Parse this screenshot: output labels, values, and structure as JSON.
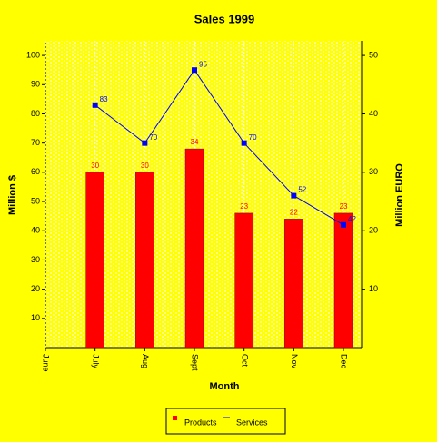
{
  "chart_data": {
    "type": "bar",
    "title": "Sales 1999",
    "x_label": "Month",
    "y_label": "Million $",
    "y2_label": "Million EURO",
    "categories": [
      "June",
      "July",
      "Aug",
      "Sept",
      "Oct",
      "Nov",
      "Dec"
    ],
    "series": [
      {
        "name": "Products",
        "type": "bar",
        "color": "#ff0000",
        "axis": "y2",
        "values": [
          null,
          30,
          30,
          34,
          23,
          22,
          23
        ]
      },
      {
        "name": "Services",
        "type": "line",
        "color": "#0000ff",
        "values": [
          null,
          83,
          70,
          95,
          70,
          52,
          42
        ]
      }
    ],
    "ylim": [
      0,
      105
    ],
    "yticks": [
      10,
      20,
      30,
      40,
      50,
      60,
      70,
      80,
      90,
      100
    ],
    "y2lim": [
      0,
      52.5
    ],
    "y2ticks": [
      10,
      20,
      30,
      40,
      50
    ],
    "grid": true,
    "legend": "bottom"
  }
}
